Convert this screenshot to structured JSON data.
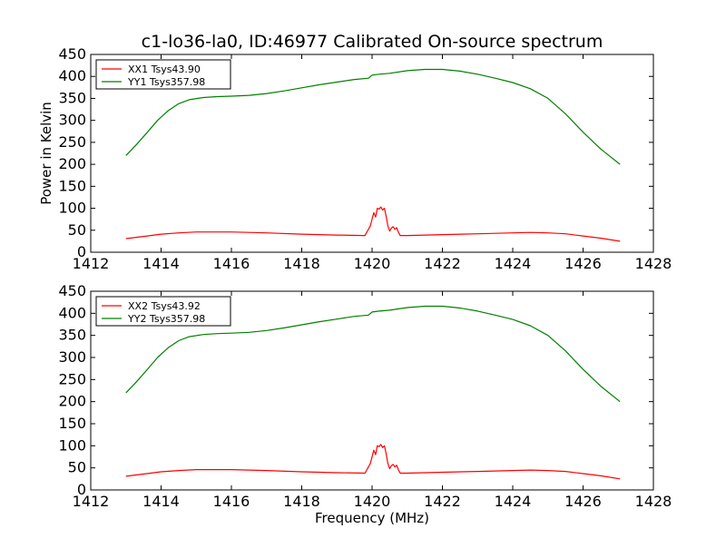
{
  "figure": {
    "title": "c1-lo36-la0, ID:46977 Calibrated On-source spectrum",
    "colors": {
      "xx": "#ff0000",
      "yy": "#008000"
    }
  },
  "chart_data": [
    {
      "type": "line",
      "title": "c1-lo36-la0, ID:46977 Calibrated On-source spectrum",
      "xlabel": "",
      "ylabel": "Power in Kelvin",
      "xlim": [
        1412,
        1428
      ],
      "ylim": [
        0,
        450
      ],
      "xticks": [
        "1412",
        "1414",
        "1416",
        "1418",
        "1420",
        "1422",
        "1424",
        "1426",
        "1428"
      ],
      "yticks": [
        "0",
        "50",
        "100",
        "150",
        "200",
        "250",
        "300",
        "350",
        "400",
        "450"
      ],
      "grid": false,
      "legend_position": "top-left",
      "series": [
        {
          "name": "XX1 Tsys43.90",
          "color": "#ff0000",
          "x": [
            1413.0,
            1413.5,
            1414.0,
            1414.5,
            1415.0,
            1415.5,
            1416.0,
            1417.0,
            1418.0,
            1419.0,
            1419.8,
            1419.95,
            1420.05,
            1420.1,
            1420.15,
            1420.2,
            1420.25,
            1420.3,
            1420.35,
            1420.4,
            1420.45,
            1420.5,
            1420.55,
            1420.6,
            1420.65,
            1420.7,
            1420.75,
            1420.8,
            1421.0,
            1422.0,
            1423.0,
            1424.0,
            1424.5,
            1425.0,
            1425.5,
            1426.0,
            1426.5,
            1427.05
          ],
          "y": [
            31,
            36,
            41,
            44,
            46,
            46,
            46,
            44,
            41,
            39,
            38,
            60,
            90,
            80,
            100,
            98,
            103,
            96,
            100,
            82,
            60,
            48,
            55,
            58,
            52,
            56,
            45,
            38,
            38,
            40,
            42,
            44,
            45,
            44,
            42,
            37,
            32,
            25
          ]
        },
        {
          "name": "YY1 Tsys357.98",
          "color": "#008000",
          "x": [
            1413.0,
            1413.3,
            1413.6,
            1413.9,
            1414.2,
            1414.5,
            1414.8,
            1415.2,
            1415.6,
            1416.0,
            1416.5,
            1417.0,
            1417.5,
            1418.0,
            1418.5,
            1419.0,
            1419.5,
            1419.9,
            1420.0,
            1420.2,
            1420.5,
            1421.0,
            1421.5,
            1422.0,
            1422.5,
            1423.0,
            1423.5,
            1424.0,
            1424.5,
            1425.0,
            1425.5,
            1426.0,
            1426.5,
            1427.05
          ],
          "y": [
            220,
            245,
            272,
            300,
            322,
            338,
            347,
            352,
            354,
            355,
            357,
            361,
            367,
            374,
            381,
            387,
            393,
            396,
            403,
            405,
            407,
            413,
            416,
            416,
            412,
            405,
            396,
            386,
            372,
            350,
            315,
            273,
            235,
            200
          ]
        }
      ]
    },
    {
      "type": "line",
      "title": "",
      "xlabel": "Frequency (MHz)",
      "ylabel": "",
      "xlim": [
        1412,
        1428
      ],
      "ylim": [
        0,
        450
      ],
      "xticks": [
        "1412",
        "1414",
        "1416",
        "1418",
        "1420",
        "1422",
        "1424",
        "1426",
        "1428"
      ],
      "yticks": [
        "0",
        "50",
        "100",
        "150",
        "200",
        "250",
        "300",
        "350",
        "400",
        "450"
      ],
      "grid": false,
      "legend_position": "top-left",
      "series": [
        {
          "name": "XX2 Tsys43.92",
          "color": "#ff0000",
          "x": [
            1413.0,
            1413.5,
            1414.0,
            1414.5,
            1415.0,
            1415.5,
            1416.0,
            1417.0,
            1418.0,
            1419.0,
            1419.8,
            1419.95,
            1420.05,
            1420.1,
            1420.15,
            1420.2,
            1420.25,
            1420.3,
            1420.35,
            1420.4,
            1420.45,
            1420.5,
            1420.55,
            1420.6,
            1420.65,
            1420.7,
            1420.75,
            1420.8,
            1421.0,
            1422.0,
            1423.0,
            1424.0,
            1424.5,
            1425.0,
            1425.5,
            1426.0,
            1426.5,
            1427.05
          ],
          "y": [
            31,
            36,
            41,
            44,
            46,
            46,
            46,
            44,
            41,
            39,
            38,
            60,
            90,
            80,
            100,
            98,
            103,
            96,
            100,
            82,
            60,
            48,
            55,
            58,
            52,
            56,
            45,
            38,
            38,
            40,
            42,
            44,
            45,
            44,
            42,
            37,
            32,
            25
          ]
        },
        {
          "name": "YY2 Tsys357.98",
          "color": "#008000",
          "x": [
            1413.0,
            1413.3,
            1413.6,
            1413.9,
            1414.2,
            1414.5,
            1414.8,
            1415.2,
            1415.6,
            1416.0,
            1416.5,
            1417.0,
            1417.5,
            1418.0,
            1418.5,
            1419.0,
            1419.5,
            1419.9,
            1420.0,
            1420.2,
            1420.5,
            1421.0,
            1421.5,
            1422.0,
            1422.5,
            1423.0,
            1423.5,
            1424.0,
            1424.5,
            1425.0,
            1425.5,
            1426.0,
            1426.5,
            1427.05
          ],
          "y": [
            220,
            245,
            272,
            300,
            322,
            338,
            347,
            352,
            354,
            355,
            357,
            361,
            367,
            374,
            381,
            387,
            393,
            396,
            403,
            405,
            407,
            413,
            416,
            416,
            412,
            405,
            396,
            386,
            372,
            350,
            315,
            273,
            235,
            200
          ]
        }
      ]
    }
  ]
}
